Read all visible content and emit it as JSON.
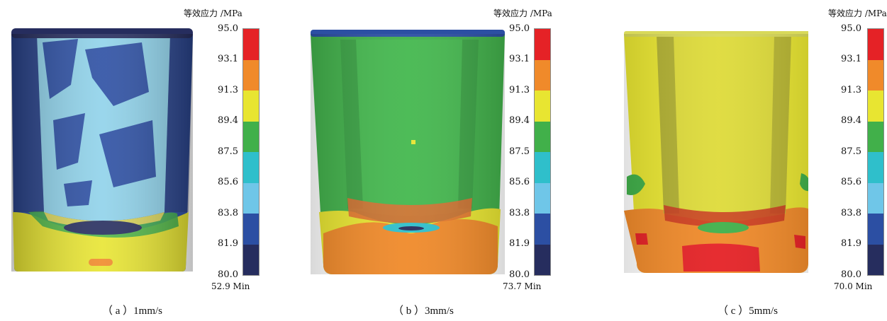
{
  "legend": {
    "title": "等效应力 /MPa",
    "ticks": [
      "95.0",
      "93.1",
      "91.3",
      "89.4",
      "87.5",
      "85.6",
      "83.8",
      "81.9",
      "80.0"
    ],
    "band_colors": [
      "#e52226",
      "#f08a2a",
      "#e8e531",
      "#41b04a",
      "#2fbfcb",
      "#6fc6e8",
      "#2c4fa3",
      "#262d5e"
    ]
  },
  "panels": [
    {
      "id": "a",
      "caption": "（ a ）1mm/s",
      "min_label": "52.9 Min"
    },
    {
      "id": "b",
      "caption": "（ b ）3mm/s",
      "min_label": "73.7 Min"
    },
    {
      "id": "c",
      "caption": "（ c ）5mm/s",
      "min_label": "70.0 Min"
    }
  ],
  "colors": {
    "red": "#e52226",
    "orange": "#f08a2a",
    "yellow": "#e8e531",
    "green": "#41b04a",
    "cyan": "#2fbfcb",
    "lightblue": "#8fd2ea",
    "blue": "#2c4fa3",
    "navy": "#262d5e"
  }
}
